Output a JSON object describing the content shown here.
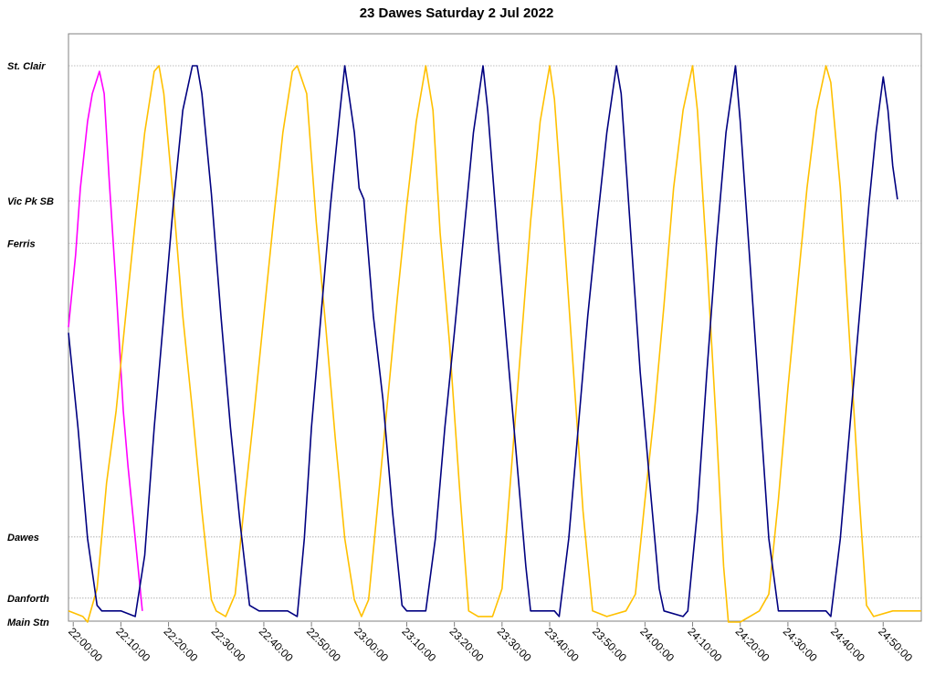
{
  "chart_data": {
    "type": "line",
    "title": "23 Dawes Saturday 2 Jul 2022",
    "xlabel": "",
    "ylabel": "",
    "x_ticks": [
      "22:00:00",
      "22:10:00",
      "22:20:00",
      "22:30:00",
      "22:40:00",
      "22:50:00",
      "23:00:00",
      "23:10:00",
      "23:20:00",
      "23:30:00",
      "23:40:00",
      "23:50:00",
      "24:00:00",
      "24:10:00",
      "24:20:00",
      "24:30:00",
      "24:40:00",
      "24:50:00"
    ],
    "xlim": [
      "21:59:00",
      "24:58:00"
    ],
    "y_stops": [
      {
        "name": "St. Clair",
        "pos": 1.0
      },
      {
        "name": "Vic Pk SB",
        "pos": 0.757
      },
      {
        "name": "Ferris",
        "pos": 0.681
      },
      {
        "name": "Dawes",
        "pos": 0.153
      },
      {
        "name": "Danforth",
        "pos": 0.043
      },
      {
        "name": "Main Stn",
        "pos": 0.0
      }
    ],
    "grid": true,
    "series": [
      {
        "color": "#FF00FF",
        "points": [
          [
            "21:59:00",
            0.53
          ],
          [
            "22:00:30",
            0.66
          ],
          [
            "22:01:30",
            0.78
          ],
          [
            "22:03:00",
            0.9
          ],
          [
            "22:04:00",
            0.95
          ],
          [
            "22:05:30",
            0.99
          ],
          [
            "22:06:30",
            0.95
          ],
          [
            "22:07:30",
            0.8
          ],
          [
            "22:09:00",
            0.6
          ],
          [
            "22:10:30",
            0.38
          ],
          [
            "22:11:30",
            0.28
          ],
          [
            "22:13:00",
            0.15
          ],
          [
            "22:14:30",
            0.02
          ]
        ]
      },
      {
        "color": "#FFC000",
        "points": [
          [
            "21:59:00",
            0.02
          ],
          [
            "22:02:00",
            0.01
          ],
          [
            "22:03:00",
            0.0
          ],
          [
            "22:05:00",
            0.06
          ],
          [
            "22:07:00",
            0.25
          ],
          [
            "22:09:00",
            0.38
          ],
          [
            "22:11:00",
            0.55
          ],
          [
            "22:13:00",
            0.72
          ],
          [
            "22:15:00",
            0.88
          ],
          [
            "22:17:00",
            0.99
          ],
          [
            "22:18:00",
            1.0
          ],
          [
            "22:19:00",
            0.95
          ],
          [
            "22:21:00",
            0.76
          ],
          [
            "22:23:00",
            0.55
          ],
          [
            "22:25:00",
            0.38
          ],
          [
            "22:27:00",
            0.2
          ],
          [
            "22:29:00",
            0.04
          ],
          [
            "22:30:00",
            0.02
          ],
          [
            "22:32:00",
            0.01
          ],
          [
            "22:34:00",
            0.05
          ],
          [
            "22:36:00",
            0.22
          ],
          [
            "22:38:00",
            0.38
          ],
          [
            "22:40:00",
            0.55
          ],
          [
            "22:42:00",
            0.72
          ],
          [
            "22:44:00",
            0.88
          ],
          [
            "22:46:00",
            0.99
          ],
          [
            "22:47:00",
            1.0
          ],
          [
            "22:49:00",
            0.95
          ],
          [
            "22:51:00",
            0.72
          ],
          [
            "22:53:00",
            0.53
          ],
          [
            "22:55:00",
            0.33
          ],
          [
            "22:57:00",
            0.15
          ],
          [
            "22:59:00",
            0.04
          ],
          [
            "23:00:30",
            0.01
          ],
          [
            "23:02:00",
            0.04
          ],
          [
            "23:04:00",
            0.22
          ],
          [
            "23:06:00",
            0.4
          ],
          [
            "23:08:00",
            0.58
          ],
          [
            "23:10:00",
            0.75
          ],
          [
            "23:12:00",
            0.9
          ],
          [
            "23:14:00",
            1.0
          ],
          [
            "23:15:30",
            0.92
          ],
          [
            "23:17:00",
            0.7
          ],
          [
            "23:19:00",
            0.5
          ],
          [
            "23:21:00",
            0.25
          ],
          [
            "23:23:00",
            0.02
          ],
          [
            "23:25:00",
            0.01
          ],
          [
            "23:28:00",
            0.01
          ],
          [
            "23:30:00",
            0.06
          ],
          [
            "23:32:00",
            0.28
          ],
          [
            "23:34:00",
            0.5
          ],
          [
            "23:36:00",
            0.72
          ],
          [
            "23:38:00",
            0.9
          ],
          [
            "23:40:00",
            1.0
          ],
          [
            "23:41:00",
            0.94
          ],
          [
            "23:43:00",
            0.7
          ],
          [
            "23:45:00",
            0.45
          ],
          [
            "23:47:00",
            0.2
          ],
          [
            "23:49:00",
            0.02
          ],
          [
            "23:52:00",
            0.01
          ],
          [
            "23:56:00",
            0.02
          ],
          [
            "23:58:00",
            0.05
          ],
          [
            "24:00:00",
            0.22
          ],
          [
            "24:02:00",
            0.38
          ],
          [
            "24:04:00",
            0.57
          ],
          [
            "24:06:00",
            0.78
          ],
          [
            "24:08:00",
            0.92
          ],
          [
            "24:10:00",
            1.0
          ],
          [
            "24:11:00",
            0.92
          ],
          [
            "24:13:00",
            0.65
          ],
          [
            "24:15:00",
            0.35
          ],
          [
            "24:16:30",
            0.1
          ],
          [
            "24:17:30",
            0.0
          ],
          [
            "24:20:00",
            0.0
          ],
          [
            "24:22:00",
            0.01
          ],
          [
            "24:24:00",
            0.02
          ],
          [
            "24:26:00",
            0.05
          ],
          [
            "24:28:00",
            0.22
          ],
          [
            "24:30:00",
            0.42
          ],
          [
            "24:32:00",
            0.6
          ],
          [
            "24:34:00",
            0.78
          ],
          [
            "24:36:00",
            0.92
          ],
          [
            "24:38:00",
            1.0
          ],
          [
            "24:39:00",
            0.97
          ],
          [
            "24:41:00",
            0.78
          ],
          [
            "24:43:00",
            0.5
          ],
          [
            "24:45:00",
            0.22
          ],
          [
            "24:46:30",
            0.03
          ],
          [
            "24:48:00",
            0.01
          ],
          [
            "24:52:00",
            0.02
          ],
          [
            "24:58:00",
            0.02
          ]
        ]
      },
      {
        "color": "#000080",
        "points": [
          [
            "21:59:00",
            0.52
          ],
          [
            "22:01:00",
            0.35
          ],
          [
            "22:03:00",
            0.15
          ],
          [
            "22:05:00",
            0.03
          ],
          [
            "22:06:00",
            0.02
          ],
          [
            "22:10:00",
            0.02
          ],
          [
            "22:13:00",
            0.01
          ],
          [
            "22:15:00",
            0.12
          ],
          [
            "22:17:00",
            0.35
          ],
          [
            "22:19:00",
            0.55
          ],
          [
            "22:21:00",
            0.75
          ],
          [
            "22:23:00",
            0.92
          ],
          [
            "22:25:00",
            1.0
          ],
          [
            "22:26:00",
            1.0
          ],
          [
            "22:27:00",
            0.95
          ],
          [
            "22:29:00",
            0.77
          ],
          [
            "22:31:00",
            0.55
          ],
          [
            "22:33:00",
            0.35
          ],
          [
            "22:35:00",
            0.18
          ],
          [
            "22:37:00",
            0.03
          ],
          [
            "22:39:00",
            0.02
          ],
          [
            "22:45:00",
            0.02
          ],
          [
            "22:47:00",
            0.01
          ],
          [
            "22:48:30",
            0.15
          ],
          [
            "22:50:00",
            0.35
          ],
          [
            "22:52:00",
            0.55
          ],
          [
            "22:54:00",
            0.75
          ],
          [
            "22:56:00",
            0.92
          ],
          [
            "22:57:00",
            1.0
          ],
          [
            "22:59:00",
            0.88
          ],
          [
            "23:00:00",
            0.78
          ],
          [
            "23:01:00",
            0.76
          ],
          [
            "23:03:00",
            0.55
          ],
          [
            "23:05:00",
            0.4
          ],
          [
            "23:07:00",
            0.2
          ],
          [
            "23:09:00",
            0.03
          ],
          [
            "23:10:00",
            0.02
          ],
          [
            "23:14:00",
            0.02
          ],
          [
            "23:16:00",
            0.15
          ],
          [
            "23:18:00",
            0.35
          ],
          [
            "23:20:00",
            0.52
          ],
          [
            "23:22:00",
            0.7
          ],
          [
            "23:24:00",
            0.88
          ],
          [
            "23:26:00",
            1.0
          ],
          [
            "23:27:00",
            0.92
          ],
          [
            "23:29:00",
            0.7
          ],
          [
            "23:31:00",
            0.5
          ],
          [
            "23:33:00",
            0.3
          ],
          [
            "23:35:00",
            0.1
          ],
          [
            "23:36:00",
            0.02
          ],
          [
            "23:41:00",
            0.02
          ],
          [
            "23:42:00",
            0.01
          ],
          [
            "23:44:00",
            0.15
          ],
          [
            "23:46:00",
            0.35
          ],
          [
            "23:48:00",
            0.55
          ],
          [
            "23:50:00",
            0.72
          ],
          [
            "23:52:00",
            0.88
          ],
          [
            "23:54:00",
            1.0
          ],
          [
            "23:55:00",
            0.95
          ],
          [
            "23:57:00",
            0.7
          ],
          [
            "23:59:00",
            0.45
          ],
          [
            "24:01:00",
            0.25
          ],
          [
            "24:03:00",
            0.06
          ],
          [
            "24:04:00",
            0.02
          ],
          [
            "24:08:00",
            0.01
          ],
          [
            "24:09:00",
            0.02
          ],
          [
            "24:11:00",
            0.2
          ],
          [
            "24:13:00",
            0.45
          ],
          [
            "24:15:00",
            0.68
          ],
          [
            "24:17:00",
            0.88
          ],
          [
            "24:19:00",
            1.0
          ],
          [
            "24:20:00",
            0.9
          ],
          [
            "24:22:00",
            0.65
          ],
          [
            "24:24:00",
            0.4
          ],
          [
            "24:26:00",
            0.15
          ],
          [
            "24:28:00",
            0.02
          ],
          [
            "24:30:00",
            0.02
          ],
          [
            "24:38:00",
            0.02
          ],
          [
            "24:39:00",
            0.01
          ],
          [
            "24:41:00",
            0.15
          ],
          [
            "24:43:00",
            0.35
          ],
          [
            "24:45:00",
            0.55
          ],
          [
            "24:47:00",
            0.75
          ],
          [
            "24:48:30",
            0.88
          ],
          [
            "24:50:00",
            0.98
          ],
          [
            "24:51:00",
            0.92
          ],
          [
            "24:52:00",
            0.82
          ],
          [
            "24:53:00",
            0.76
          ]
        ]
      }
    ]
  }
}
